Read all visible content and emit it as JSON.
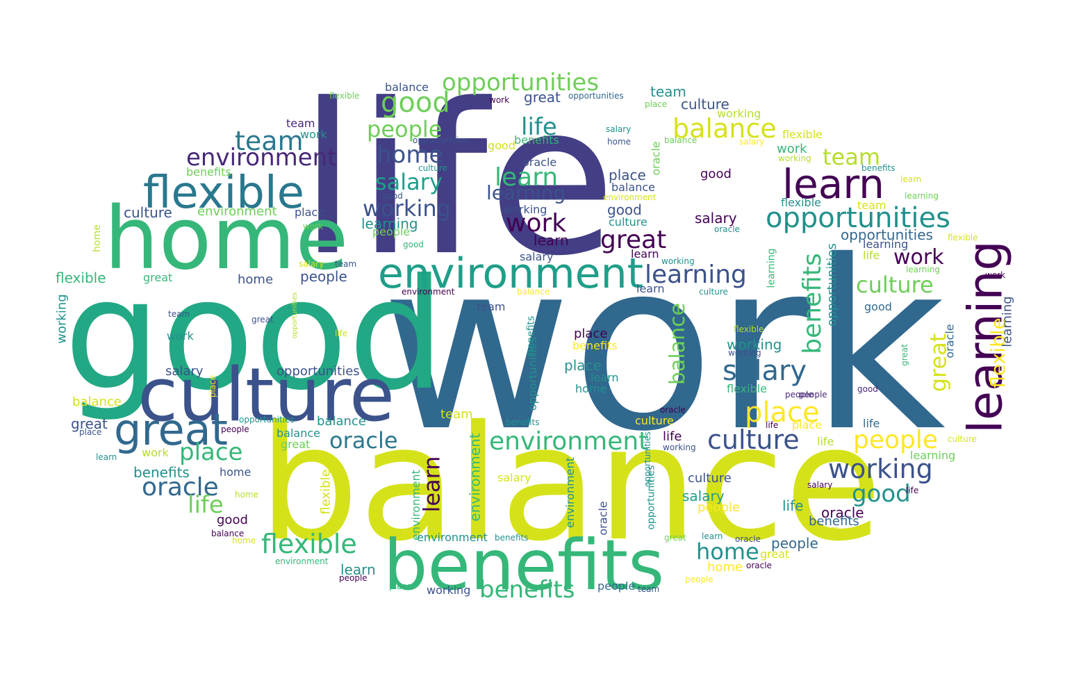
{
  "palette": {
    "dark_purple": "#440154",
    "indigo": "#433e85",
    "blue": "#31688e",
    "steel": "#3b528b",
    "teal": "#21918c",
    "sea": "#1f9e89",
    "green": "#35b779",
    "light_green": "#6ece58",
    "lime": "#b5de2b",
    "yellow": "#d5e21a",
    "bright_yellow": "#fde725"
  },
  "words": {
    "work_main": "work",
    "life_main": "life",
    "balance_main": "balance",
    "good_main": "good",
    "home_main": "home",
    "culture_main": "culture",
    "benefits_main": "benefits",
    "learning_main": "learning",
    "environment_main": "environment",
    "flexible_main": "flexible",
    "great_main": "great",
    "learn_main": "learn",
    "opportunities_main": "opportunities",
    "salary_main": "salary",
    "balance_2": "balance",
    "culture_2": "culture",
    "working_2": "working",
    "place_2": "place",
    "people_2": "people",
    "good_2": "good",
    "team_2": "team",
    "environment_2": "environment",
    "oracle_2": "oracle",
    "place_3": "place",
    "benefits_2": "benefits",
    "flexible_2": "flexible",
    "benefits_3": "benefits",
    "life_2": "life",
    "learn_2": "learn",
    "home_2": "home",
    "learning_2": "learning",
    "opportunities_2": "opportunities",
    "great_2": "great",
    "good_3": "good",
    "people_3": "people",
    "team_3": "team",
    "life_3": "life",
    "salary_2": "salary",
    "working_3": "working",
    "work_2": "work",
    "environment_3": "environment",
    "learning_3": "learning",
    "culture_3": "culture",
    "team_4": "team",
    "work_3": "work",
    "balance_3": "balance",
    "great_3": "great",
    "salary_3": "salary",
    "oracle_3": "oracle",
    "culture_4": "culture",
    "home_3": "home",
    "salary_4": "salary",
    "home_4": "home",
    "learn_3": "learn",
    "flexible_3": "flexible",
    "working_4": "working",
    "learning_4": "learning",
    "place_4": "place",
    "culture_5": "culture",
    "people_4": "people",
    "balance_4": "balance",
    "environment_4": "environment",
    "flexible_4": "flexible",
    "great_4": "great",
    "benefits_4": "benefits",
    "oracle_4": "oracle",
    "working_5": "working",
    "opportunities_3": "opportunities",
    "good_4": "good",
    "learn_4": "learn",
    "salary_5": "salary",
    "life_4": "life",
    "opportunities_4": "opportunities",
    "team_5": "team",
    "balance_5": "balance",
    "learn_5": "learn",
    "work_4": "work",
    "people_5": "people",
    "place_5": "place",
    "culture_6": "culture",
    "home_5": "home",
    "work_5": "work",
    "oracle_5": "oracle",
    "life_5": "life",
    "people_6": "people",
    "great_5": "great",
    "learning_5": "learning",
    "learn_6": "learn",
    "flexible_5": "flexible",
    "team_6": "team",
    "home_6": "home",
    "culture_7": "culture",
    "people_7": "people",
    "environment_5": "environment",
    "learn_7": "learn",
    "salary_6": "salary",
    "balance_6": "balance",
    "team_7": "team",
    "good_5": "good",
    "learning_6": "learning",
    "oracle_6": "oracle",
    "working_6": "working",
    "flexible_6": "flexible",
    "place_6": "place",
    "benefits_5": "benefits",
    "great_6": "great",
    "learn_8": "learn",
    "working_7": "working",
    "environment_6": "environment",
    "benefits_6": "benefits",
    "opportunities_5": "opportunities",
    "people_8": "people",
    "environment_7": "environment",
    "working_8": "working",
    "balance_7": "balance",
    "culture_8": "culture",
    "salary_7": "salary",
    "place_7": "place",
    "great_7": "great",
    "team_8": "team",
    "life_6": "life",
    "home_7": "home",
    "good_6": "good",
    "work_6": "work",
    "flexible_7": "flexible",
    "benefits_7": "benefits",
    "balance_8": "balance",
    "oracle_7": "oracle",
    "people_9": "people",
    "opportunities_6": "opportunities",
    "team_9": "team",
    "learning_7": "learning",
    "working_9": "working",
    "flexible_8": "flexible",
    "benefits_8": "benefits",
    "salary_8": "salary",
    "life_7": "life",
    "good_7": "good",
    "great_8": "great",
    "home_8": "home",
    "balance_9": "balance",
    "learn_9": "learn",
    "place_8": "place",
    "people_10": "people",
    "oracle_8": "oracle",
    "environment_8": "environment",
    "learning_8": "learning",
    "team_10": "team",
    "place_9": "place",
    "home_9": "home",
    "life_8": "life",
    "benefits_9": "benefits",
    "flexible_9": "flexible",
    "working_10": "working",
    "opportunities_7": "opportunities",
    "culture_9": "culture",
    "good_8": "good",
    "work_7": "work",
    "great_9": "great",
    "salary_9": "salary",
    "learn_10": "learn",
    "life_9": "life",
    "oracle_9": "oracle",
    "people_11": "people",
    "balance_10": "balance",
    "place_10": "place",
    "team_11": "team",
    "culture_10": "culture",
    "opportunities_8": "opportunities",
    "learning_9": "learning",
    "home_10": "home",
    "good_9": "good",
    "benefits_10": "benefits",
    "working_11": "working",
    "environment_9": "environment",
    "great_10": "great",
    "salary_10": "salary",
    "flexible_10": "flexible",
    "team_12": "team",
    "learn_11": "learn",
    "people_12": "people",
    "life_10": "life",
    "work_8": "work",
    "place_11": "place",
    "oracle_10": "oracle",
    "culture_11": "culture",
    "good_10": "good",
    "home_11": "home",
    "balance_11": "balance",
    "salary_11": "salary",
    "people_13": "people",
    "team_13": "team",
    "learn_12": "learn",
    "great_11": "great",
    "flexible_11": "flexible",
    "working_12": "working",
    "learning_10": "learning",
    "benefits_11": "benefits",
    "environment_10": "environment",
    "opportunities_9": "opportunities",
    "oracle_11": "oracle",
    "place_12": "place",
    "home_12": "home",
    "life_11": "life",
    "people_14": "people",
    "great_12": "great",
    "good_11": "good",
    "salary_12": "salary",
    "benefits_12": "benefits",
    "culture_12": "culture",
    "team_14": "team",
    "learn_13": "learn",
    "oracle_12": "oracle",
    "environment_11": "environment",
    "balance_12": "balance",
    "working_13": "working",
    "place_13": "place",
    "people_15": "people",
    "team_15": "team",
    "life_12": "life"
  }
}
